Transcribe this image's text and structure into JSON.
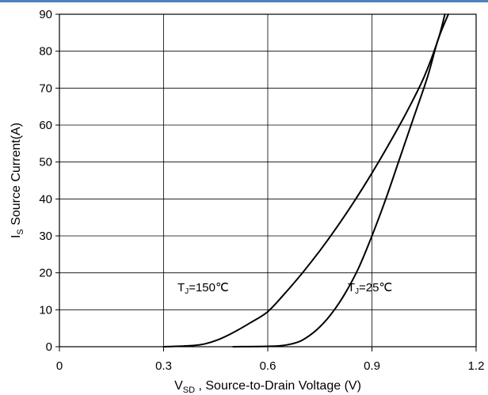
{
  "chart_data": {
    "type": "line",
    "xlabel": {
      "main": "V",
      "sub": "SD",
      "rest": " , Source-to-Drain Voltage (V)"
    },
    "ylabel": {
      "main": "I",
      "sub": "S",
      "rest": " Source Current(A)"
    },
    "xlim": [
      0,
      1.2
    ],
    "ylim": [
      0,
      90
    ],
    "xticks": [
      0,
      0.3,
      0.6,
      0.9,
      1.2
    ],
    "xtick_labels": [
      "0",
      "0.3",
      "0.6",
      "0.9",
      "1.2"
    ],
    "yticks": [
      0,
      10,
      20,
      30,
      40,
      50,
      60,
      70,
      80,
      90
    ],
    "ytick_labels": [
      "0",
      "10",
      "20",
      "30",
      "40",
      "50",
      "60",
      "70",
      "80",
      "90"
    ],
    "grid": true,
    "legend": "none",
    "series": [
      {
        "name": "TJ=150℃",
        "label": {
          "main": "T",
          "sub": "J",
          "rest": "=150℃"
        },
        "color": "#000000",
        "points": [
          [
            0.3,
            0
          ],
          [
            0.38,
            0.3
          ],
          [
            0.42,
            0.8
          ],
          [
            0.46,
            2
          ],
          [
            0.5,
            3.8
          ],
          [
            0.55,
            6.5
          ],
          [
            0.6,
            9.5
          ],
          [
            0.65,
            14.5
          ],
          [
            0.7,
            20
          ],
          [
            0.75,
            26
          ],
          [
            0.8,
            32.5
          ],
          [
            0.85,
            39.5
          ],
          [
            0.9,
            47
          ],
          [
            0.95,
            55
          ],
          [
            1.0,
            63.5
          ],
          [
            1.05,
            73
          ],
          [
            1.09,
            83
          ],
          [
            1.11,
            90
          ]
        ]
      },
      {
        "name": "TJ=25℃",
        "label": {
          "main": "T",
          "sub": "J",
          "rest": "=25℃"
        },
        "color": "#000000",
        "points": [
          [
            0.5,
            0
          ],
          [
            0.6,
            0.1
          ],
          [
            0.64,
            0.3
          ],
          [
            0.67,
            0.8
          ],
          [
            0.7,
            1.8
          ],
          [
            0.74,
            4.5
          ],
          [
            0.78,
            8.5
          ],
          [
            0.82,
            14
          ],
          [
            0.86,
            21
          ],
          [
            0.9,
            30
          ],
          [
            0.94,
            40
          ],
          [
            0.98,
            51
          ],
          [
            1.02,
            62
          ],
          [
            1.06,
            73
          ],
          [
            1.09,
            83
          ],
          [
            1.12,
            90
          ]
        ]
      }
    ]
  }
}
